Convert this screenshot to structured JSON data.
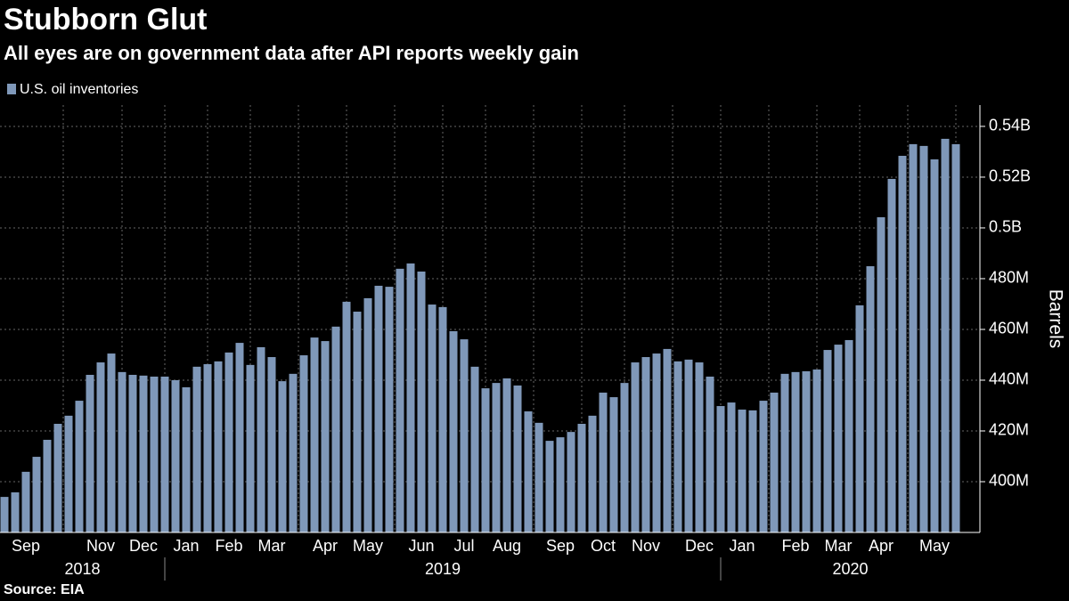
{
  "chart_data": {
    "type": "bar",
    "title": "Stubborn Glut",
    "subtitle": "All eyes are on government data after API reports weekly gain",
    "source": "Source: EIA",
    "y_axis_label": "Barrels",
    "series": [
      {
        "name": "U.S. oil inventories",
        "color": "#7f98b9",
        "values": [
          394000000,
          395800000,
          403900000,
          409800000,
          416500000,
          422800000,
          426000000,
          431900000,
          442100000,
          447000000,
          450500000,
          443200000,
          442100000,
          441800000,
          441400000,
          441400000,
          440000000,
          437200000,
          445300000,
          446300000,
          447400000,
          450900000,
          454700000,
          446000000,
          453000000,
          449100000,
          439600000,
          442500000,
          449800000,
          456800000,
          455400000,
          461100000,
          470900000,
          467000000,
          472300000,
          477200000,
          476800000,
          483900000,
          486000000,
          482800000,
          469800000,
          468800000,
          459300000,
          456100000,
          445300000,
          436800000,
          438900000,
          440700000,
          437900000,
          427700000,
          423200000,
          416100000,
          417500000,
          419600000,
          422800000,
          426000000,
          435100000,
          433300000,
          438900000,
          447000000,
          449100000,
          450500000,
          452300000,
          447400000,
          448100000,
          447000000,
          441400000,
          429800000,
          431200000,
          428400000,
          428100000,
          431900000,
          435100000,
          442500000,
          443200000,
          443500000,
          444200000,
          451900000,
          454000000,
          455800000,
          469500000,
          484900000,
          504200000,
          519300000,
          528400000,
          533000000,
          532300000,
          527000000,
          535100000,
          533000000
        ]
      }
    ],
    "categories": [
      null,
      null,
      "Sep",
      null,
      null,
      null,
      null,
      null,
      null,
      "Nov",
      null,
      null,
      null,
      "Dec",
      null,
      null,
      null,
      "Jan",
      null,
      null,
      null,
      "Feb",
      null,
      null,
      null,
      "Mar",
      null,
      null,
      null,
      null,
      "Apr",
      null,
      null,
      null,
      "May",
      null,
      null,
      null,
      null,
      "Jun",
      null,
      null,
      null,
      "Jul",
      null,
      null,
      null,
      "Aug",
      null,
      null,
      null,
      null,
      "Sep",
      null,
      null,
      null,
      "Oct",
      null,
      null,
      null,
      "Nov",
      null,
      null,
      null,
      null,
      "Dec",
      null,
      null,
      null,
      "Jan",
      null,
      null,
      null,
      null,
      "Feb",
      null,
      null,
      null,
      "Mar",
      null,
      null,
      null,
      "Apr",
      null,
      null,
      null,
      null,
      "May",
      null,
      null
    ],
    "years": [
      "2018",
      "2019",
      "2020"
    ],
    "ylim": [
      380000000,
      548400000
    ],
    "yticks": [
      {
        "value": 400000000,
        "label": "400M"
      },
      {
        "value": 420000000,
        "label": "420M"
      },
      {
        "value": 440000000,
        "label": "440M"
      },
      {
        "value": 460000000,
        "label": "460M"
      },
      {
        "value": 480000000,
        "label": "480M"
      },
      {
        "value": 500000000,
        "label": "0.5B"
      },
      {
        "value": 520000000,
        "label": "0.52B"
      },
      {
        "value": 540000000,
        "label": "0.54B"
      }
    ],
    "grid": true
  }
}
